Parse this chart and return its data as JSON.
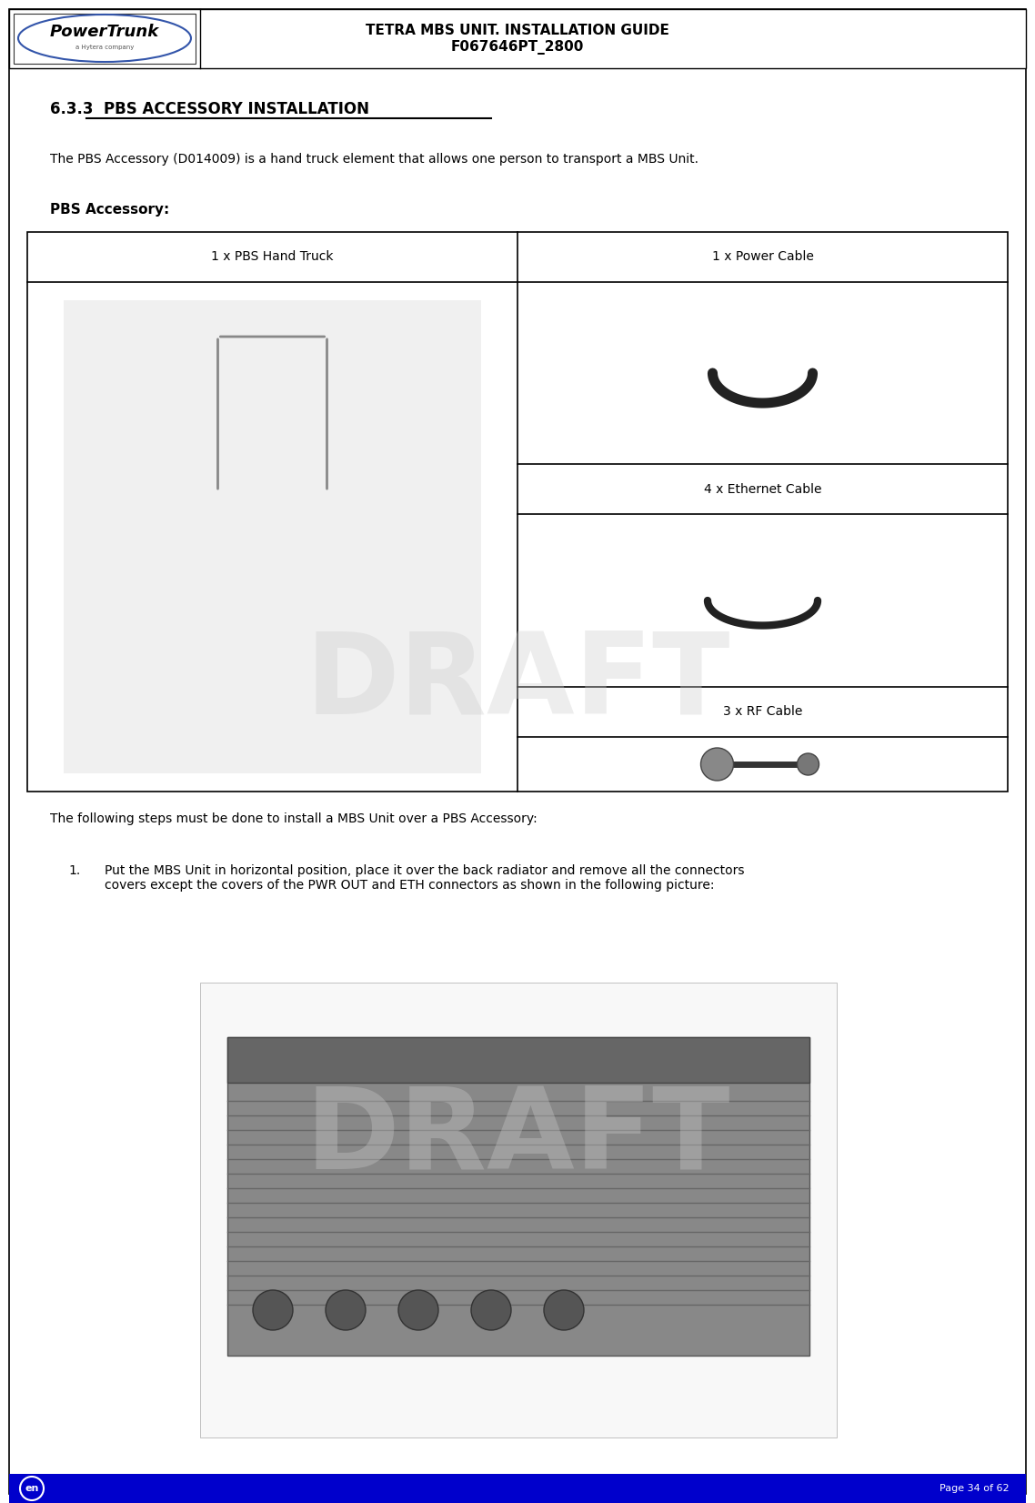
{
  "page_width": 11.38,
  "page_height": 16.52,
  "bg_color": "#ffffff",
  "header_title_line1": "TETRA MBS UNIT. INSTALLATION GUIDE",
  "header_title_line2": "F067646PT_2800",
  "footer_bg": "#0000cc",
  "footer_left": "en",
  "footer_right": "Page 34 of 62",
  "section_heading": "6.3.3  PBS ACCESSORY INSTALLATION",
  "intro_text": "The PBS Accessory (D014009) is a hand truck element that allows one person to transport a MBS Unit.",
  "accessory_label": "PBS Accessory:",
  "table_col1_header": "1 x PBS Hand Truck",
  "table_col2_header": "1 x Power Cable",
  "table_row2_col2_label": "4 x Ethernet Cable",
  "table_row3_col2_label": "3 x RF Cable",
  "steps_intro": "The following steps must be done to install a MBS Unit over a PBS Accessory:",
  "step1_text": "Put the MBS Unit in horizontal position, place it over the back radiator and remove all the connectors\ncovers except the covers of the PWR OUT and ETH connectors as shown in the following picture:",
  "step1_number": "1.",
  "draft_watermark": "DRAFT",
  "border_color": "#000000",
  "text_color": "#000000"
}
